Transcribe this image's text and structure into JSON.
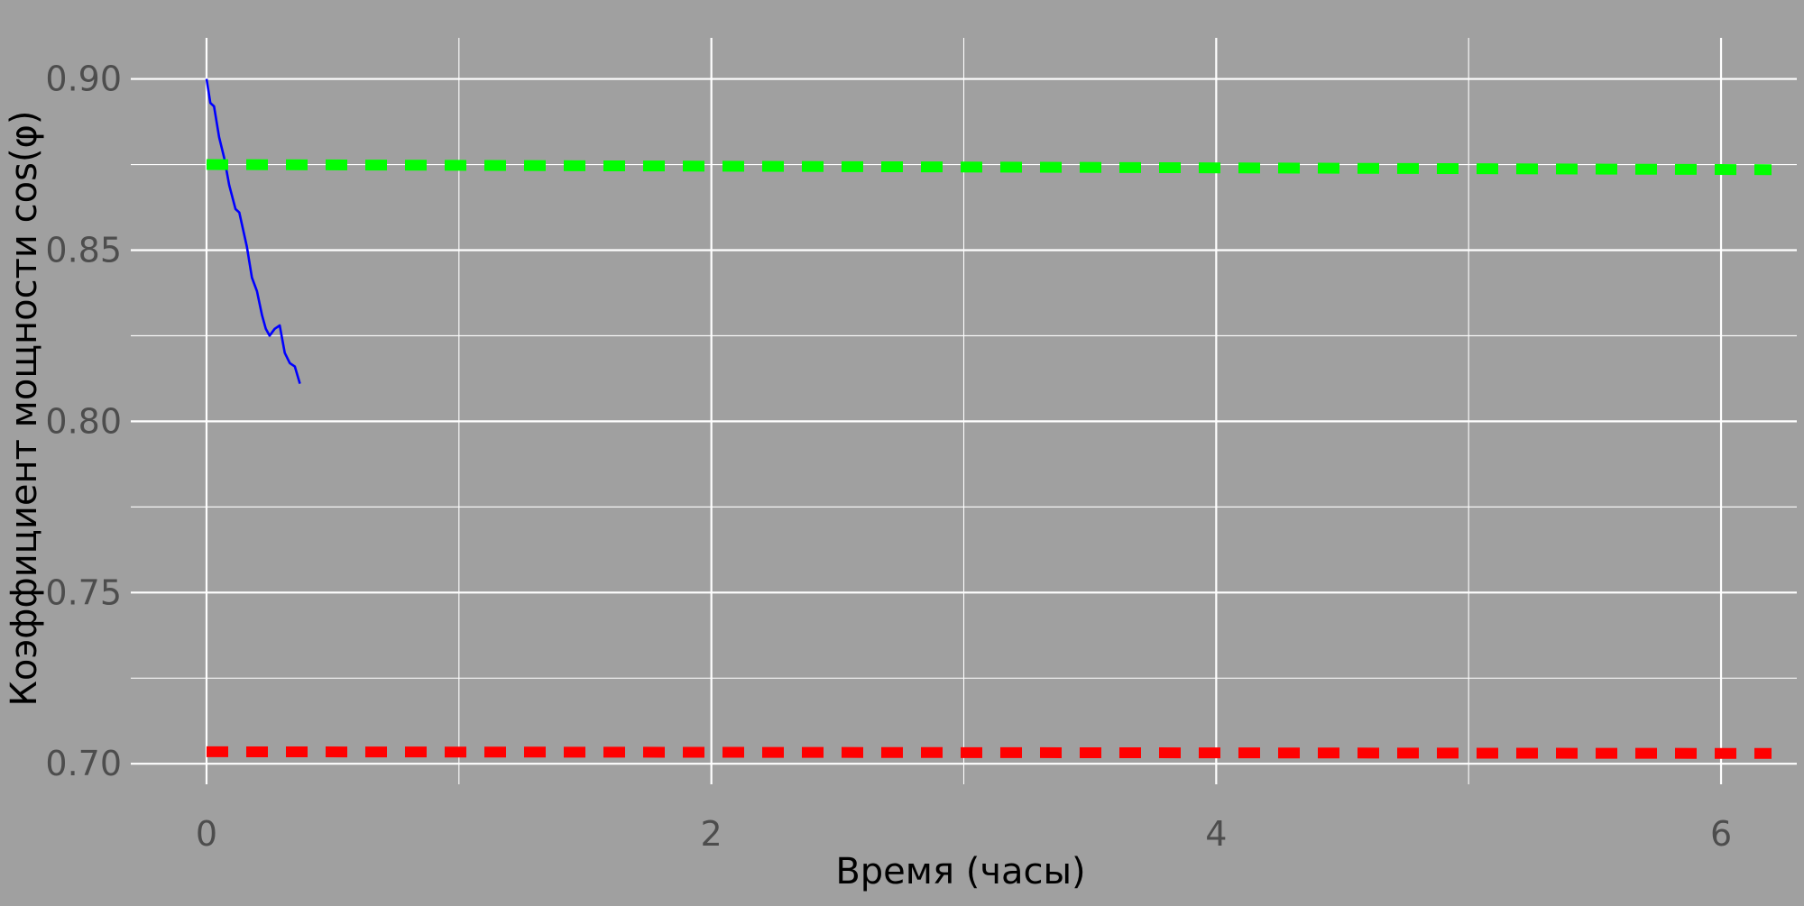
{
  "chart_data": {
    "type": "line",
    "title": "",
    "xlabel": "Время (часы)",
    "ylabel": "Коэффициент мощности cos(φ)",
    "xlim": [
      -0.3,
      6.3
    ],
    "ylim": [
      0.694,
      0.912
    ],
    "x_ticks": [
      0,
      2,
      4,
      6
    ],
    "x_tick_labels": [
      "0",
      "2",
      "4",
      "6"
    ],
    "y_ticks": [
      0.7,
      0.75,
      0.8,
      0.85,
      0.9
    ],
    "y_tick_labels": [
      "0.70",
      "0.75",
      "0.80",
      "0.85",
      "0.90"
    ],
    "grid": true,
    "series": [
      {
        "style": "solid",
        "color": "#0000ff",
        "points": [
          [
            0.0,
            0.9
          ],
          [
            0.015,
            0.893
          ],
          [
            0.03,
            0.892
          ],
          [
            0.05,
            0.883
          ],
          [
            0.07,
            0.877
          ],
          [
            0.09,
            0.869
          ],
          [
            0.115,
            0.862
          ],
          [
            0.13,
            0.861
          ],
          [
            0.16,
            0.851
          ],
          [
            0.18,
            0.842
          ],
          [
            0.2,
            0.838
          ],
          [
            0.22,
            0.831
          ],
          [
            0.235,
            0.827
          ],
          [
            0.25,
            0.825
          ],
          [
            0.27,
            0.827
          ],
          [
            0.29,
            0.828
          ],
          [
            0.31,
            0.82
          ],
          [
            0.33,
            0.817
          ],
          [
            0.35,
            0.816
          ],
          [
            0.37,
            0.811
          ],
          [
            0.37,
            0.811
          ],
          [
            0.37,
            0.811
          ],
          [
            0.37,
            0.811
          ],
          [
            0.37,
            0.811
          ],
          [
            0.37,
            0.811
          ],
          [
            0.37,
            0.811
          ],
          [
            0.37,
            0.811
          ],
          [
            0.37,
            0.811
          ],
          [
            0.37,
            0.811
          ],
          [
            0.37,
            0.811
          ],
          [
            0.37,
            0.811
          ],
          [
            0.37,
            0.811
          ],
          [
            0.37,
            0.811
          ],
          [
            0.37,
            0.811
          ],
          [
            0.37,
            0.811
          ],
          [
            0.37,
            0.811
          ],
          [
            0.37,
            0.811
          ],
          [
            0.37,
            0.811
          ],
          [
            0.37,
            0.811
          ],
          [
            0.37,
            0.811
          ],
          [
            0.37,
            0.811
          ],
          [
            0.37,
            0.811
          ],
          [
            0.37,
            0.811
          ],
          [
            0.37,
            0.811
          ],
          [
            0.37,
            0.811
          ],
          [
            0.37,
            0.811
          ],
          [
            0.37,
            0.811
          ],
          [
            0.37,
            0.811
          ],
          [
            0.37,
            0.811
          ],
          [
            0.37,
            0.811
          ],
          [
            0.37,
            0.811
          ],
          [
            0.37,
            0.811
          ],
          [
            0.37,
            0.811
          ],
          [
            0.37,
            0.811
          ],
          [
            0.37,
            0.811
          ],
          [
            0.37,
            0.811
          ],
          [
            0.37,
            0.811
          ],
          [
            0.37,
            0.811
          ],
          [
            0.37,
            0.811
          ],
          [
            0.37,
            0.811
          ],
          [
            0.37,
            0.811
          ],
          [
            0.37,
            0.811
          ],
          [
            0.37,
            0.811
          ],
          [
            0.37,
            0.811
          ],
          [
            0.37,
            0.811
          ],
          [
            0.37,
            0.811
          ],
          [
            0.37,
            0.811
          ],
          [
            0.37,
            0.811
          ],
          [
            0.37,
            0.811
          ],
          [
            0.37,
            0.811
          ],
          [
            0.37,
            0.811
          ],
          [
            0.37,
            0.811
          ],
          [
            0.37,
            0.811
          ],
          [
            0.37,
            0.811
          ],
          [
            0.37,
            0.811
          ],
          [
            0.37,
            0.811
          ],
          [
            0.37,
            0.811
          ],
          [
            0.37,
            0.811
          ],
          [
            0.37,
            0.811
          ],
          [
            0.37,
            0.811
          ],
          [
            0.37,
            0.811
          ],
          [
            0.37,
            0.811
          ],
          [
            0.37,
            0.811
          ],
          [
            0.37,
            0.811
          ],
          [
            0.37,
            0.811
          ],
          [
            0.37,
            0.811
          ],
          [
            0.37,
            0.811
          ],
          [
            0.37,
            0.811
          ],
          [
            0.37,
            0.811
          ],
          [
            0.37,
            0.811
          ],
          [
            0.37,
            0.811
          ],
          [
            0.37,
            0.811
          ],
          [
            0.37,
            0.811
          ],
          [
            0.37,
            0.811
          ],
          [
            0.37,
            0.811
          ],
          [
            0.37,
            0.811
          ],
          [
            0.37,
            0.811
          ],
          [
            0.37,
            0.811
          ],
          [
            0.37,
            0.811
          ],
          [
            0.37,
            0.811
          ],
          [
            0.37,
            0.811
          ],
          [
            0.37,
            0.811
          ],
          [
            0.37,
            0.811
          ],
          [
            0.37,
            0.811
          ],
          [
            0.37,
            0.811
          ],
          [
            0.37,
            0.811
          ],
          [
            0.37,
            0.811
          ],
          [
            0.37,
            0.811
          ],
          [
            0.37,
            0.811
          ],
          [
            0.37,
            0.811
          ],
          [
            0.37,
            0.811
          ],
          [
            0.37,
            0.811
          ],
          [
            0.37,
            0.811
          ],
          [
            0.37,
            0.811
          ],
          [
            0.37,
            0.811
          ],
          [
            0.37,
            0.811
          ],
          [
            0.37,
            0.811
          ],
          [
            0.37,
            0.811
          ],
          [
            0.37,
            0.811
          ],
          [
            0.37,
            0.811
          ],
          [
            0.37,
            0.811
          ],
          [
            0.37,
            0.811
          ],
          [
            0.37,
            0.811
          ],
          [
            0.37,
            0.811
          ],
          [
            0.37,
            0.811
          ],
          [
            0.37,
            0.811
          ],
          [
            0.37,
            0.811
          ],
          [
            0.37,
            0.811
          ],
          [
            0.37,
            0.811
          ],
          [
            0.37,
            0.811
          ],
          [
            0.37,
            0.811
          ],
          [
            0.37,
            0.811
          ],
          [
            0.37,
            0.811
          ],
          [
            0.37,
            0.811
          ],
          [
            0.37,
            0.811
          ],
          [
            0.37,
            0.811
          ],
          [
            0.37,
            0.811
          ],
          [
            0.37,
            0.811
          ],
          [
            0.37,
            0.811
          ],
          [
            0.37,
            0.811
          ],
          [
            0.37,
            0.811
          ],
          [
            0.37,
            0.811
          ],
          [
            0.37,
            0.811
          ],
          [
            0.37,
            0.811
          ],
          [
            0.37,
            0.811
          ],
          [
            0.37,
            0.811
          ],
          [
            0.37,
            0.811
          ],
          [
            0.37,
            0.811
          ],
          [
            0.37,
            0.811
          ],
          [
            0.37,
            0.811
          ],
          [
            0.37,
            0.811
          ],
          [
            0.37,
            0.811
          ],
          [
            0.37,
            0.811
          ],
          [
            0.37,
            0.811
          ],
          [
            0.37,
            0.811
          ],
          [
            0.37,
            0.811
          ],
          [
            0.37,
            0.811
          ],
          [
            0.37,
            0.811
          ],
          [
            0.37,
            0.811
          ],
          [
            0.37,
            0.811
          ],
          [
            0.37,
            0.811
          ],
          [
            0.37,
            0.811
          ],
          [
            0.37,
            0.811
          ],
          [
            0.37,
            0.811
          ],
          [
            0.37,
            0.811
          ],
          [
            0.37,
            0.811
          ],
          [
            0.37,
            0.811
          ],
          [
            0.37,
            0.811
          ],
          [
            0.37,
            0.811
          ],
          [
            0.37,
            0.811
          ],
          [
            0.37,
            0.811
          ],
          [
            0.37,
            0.811
          ],
          [
            0.37,
            0.811
          ],
          [
            0.37,
            0.811
          ],
          [
            0.37,
            0.811
          ],
          [
            0.37,
            0.811
          ],
          [
            0.37,
            0.811
          ],
          [
            0.37,
            0.811
          ],
          [
            0.37,
            0.811
          ],
          [
            0.37,
            0.811
          ],
          [
            0.37,
            0.811
          ],
          [
            0.37,
            0.811
          ],
          [
            0.37,
            0.811
          ],
          [
            0.37,
            0.811
          ],
          [
            0.37,
            0.811
          ],
          [
            0.37,
            0.811
          ],
          [
            0.37,
            0.811
          ],
          [
            0.37,
            0.811
          ],
          [
            0.37,
            0.811
          ],
          [
            0.37,
            0.811
          ],
          [
            0.37,
            0.811
          ],
          [
            0.37,
            0.811
          ],
          [
            0.37,
            0.811
          ],
          [
            0.37,
            0.811
          ],
          [
            0.37,
            0.811
          ]
        ]
      },
      {
        "style": "dashed",
        "color": "#00ff00",
        "points": [
          [
            0.0,
            0.875
          ],
          [
            6.2,
            0.8735
          ]
        ]
      },
      {
        "style": "dashed",
        "color": "#ff0000",
        "points": [
          [
            0.0,
            0.7035
          ],
          [
            6.2,
            0.703
          ]
        ]
      }
    ]
  }
}
